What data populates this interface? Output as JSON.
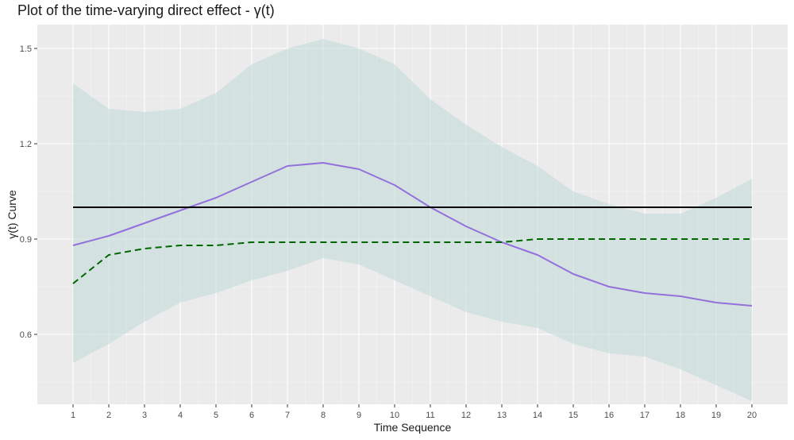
{
  "chart_data": {
    "type": "line",
    "title": "Plot of the time-varying direct effect - γ(t)",
    "xlabel": "Time Sequence",
    "ylabel": "γ(t) Curve",
    "xlim": [
      0,
      21
    ],
    "ylim": [
      0.38,
      1.575
    ],
    "x": [
      1,
      2,
      3,
      4,
      5,
      6,
      7,
      8,
      9,
      10,
      11,
      12,
      13,
      14,
      15,
      16,
      17,
      18,
      19,
      20
    ],
    "x_ticks": [
      "1",
      "2",
      "3",
      "4",
      "5",
      "6",
      "7",
      "8",
      "9",
      "10",
      "11",
      "12",
      "13",
      "14",
      "15",
      "16",
      "17",
      "18",
      "19",
      "20"
    ],
    "y_ticks": [
      0.6,
      0.9,
      1.2,
      1.5
    ],
    "y_tick_labels": [
      "0.6",
      "0.9",
      "1.2",
      "1.5"
    ],
    "band": {
      "upper": [
        1.39,
        1.31,
        1.3,
        1.31,
        1.36,
        1.45,
        1.5,
        1.53,
        1.5,
        1.45,
        1.34,
        1.26,
        1.19,
        1.13,
        1.05,
        1.01,
        0.98,
        0.98,
        1.03,
        1.09
      ],
      "lower": [
        0.51,
        0.57,
        0.64,
        0.7,
        0.73,
        0.77,
        0.8,
        0.84,
        0.82,
        0.77,
        0.72,
        0.67,
        0.64,
        0.62,
        0.57,
        0.54,
        0.53,
        0.49,
        0.44,
        0.39
      ],
      "color": "#bfdbd7"
    },
    "series": [
      {
        "values": [
          0.88,
          0.91,
          0.95,
          0.99,
          1.03,
          1.08,
          1.13,
          1.14,
          1.12,
          1.07,
          1.0,
          0.94,
          0.89,
          0.85,
          0.79,
          0.75,
          0.73,
          0.72,
          0.7,
          0.69
        ],
        "color": "#9370db",
        "style": "solid"
      },
      {
        "values": [
          0.76,
          0.85,
          0.87,
          0.88,
          0.88,
          0.89,
          0.89,
          0.89,
          0.89,
          0.89,
          0.89,
          0.89,
          0.89,
          0.9,
          0.9,
          0.9,
          0.9,
          0.9,
          0.9,
          0.9
        ],
        "color": "#006400",
        "style": "dashed"
      },
      {
        "values": [
          1.0,
          1.0,
          1.0,
          1.0,
          1.0,
          1.0,
          1.0,
          1.0,
          1.0,
          1.0,
          1.0,
          1.0,
          1.0,
          1.0,
          1.0,
          1.0,
          1.0,
          1.0,
          1.0,
          1.0
        ],
        "color": "#000000",
        "style": "solid"
      }
    ],
    "grid": true,
    "legend": "none"
  }
}
